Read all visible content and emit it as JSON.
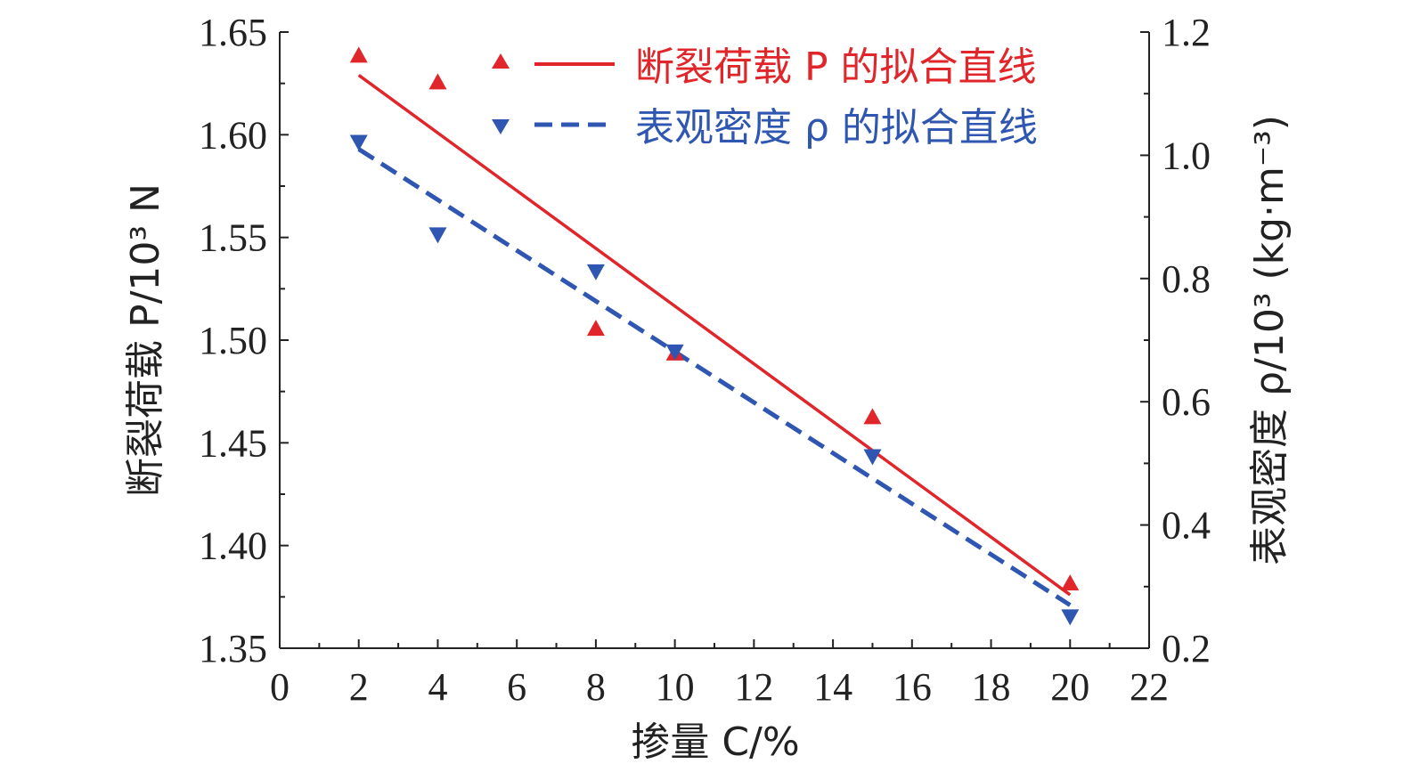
{
  "chart_data": {
    "type": "scatter",
    "x": [
      2,
      4,
      8,
      10,
      15,
      20
    ],
    "xlabel": "掺量 C/%",
    "xlim": [
      0,
      22
    ],
    "xticks": [
      "0",
      "2",
      "4",
      "6",
      "8",
      "10",
      "12",
      "14",
      "16",
      "18",
      "20",
      "22"
    ],
    "ylabel_left": "断裂荷载 P/10³ N",
    "ylim_left": [
      1.35,
      1.65
    ],
    "yticks_left": [
      "1.35",
      "1.40",
      "1.45",
      "1.50",
      "1.55",
      "1.60",
      "1.65"
    ],
    "ylabel_right": "表观密度 ρ/10³ (kg·m⁻³)",
    "ylim_right": [
      0.2,
      1.2
    ],
    "yticks_right": [
      "0.2",
      "0.4",
      "0.6",
      "0.8",
      "1.0",
      "1.2"
    ],
    "series": [
      {
        "name": "断裂荷载 P 的拟合直线",
        "axis": "left",
        "color": "#e0262a",
        "marker": "triangle-up",
        "line_style": "solid",
        "values": [
          1.639,
          1.626,
          1.506,
          1.494,
          1.463,
          1.382
        ],
        "fit": [
          [
            2,
            1.629
          ],
          [
            20,
            1.376
          ]
        ]
      },
      {
        "name": "表观密度 ρ 的拟合直线",
        "axis": "right",
        "color": "#2f56b0",
        "marker": "triangle-down",
        "line_style": "dashed",
        "values": [
          1.02,
          0.87,
          0.81,
          0.68,
          0.51,
          0.25
        ],
        "fit": [
          [
            2,
            1.01
          ],
          [
            20,
            0.27
          ]
        ]
      }
    ],
    "legend_position": "top-right"
  }
}
